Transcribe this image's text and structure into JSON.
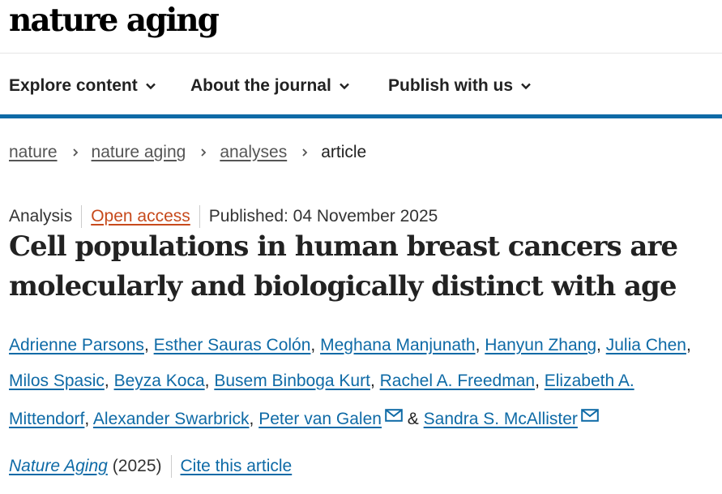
{
  "header": {
    "logo_text": "nature aging"
  },
  "nav": {
    "items": [
      {
        "label": "Explore content"
      },
      {
        "label": "About the journal"
      },
      {
        "label": "Publish with us"
      }
    ]
  },
  "breadcrumb": {
    "items": [
      "nature",
      "nature aging",
      "analyses"
    ],
    "current": "article"
  },
  "article": {
    "type": "Analysis",
    "access": "Open access",
    "published": "Published: 04 November 2025",
    "title": "Cell populations in human breast cancers are molecularly and biologically distinct with age",
    "authors": [
      "Adrienne Parsons",
      "Esther Sauras Colón",
      "Meghana Manjunath",
      "Hanyun Zhang",
      "Julia Chen",
      "Milos Spasic",
      "Beyza Koca",
      "Busem Binboga Kurt",
      "Rachel A. Freedman",
      "Elizabeth A. Mittendorf",
      "Alexander Swarbrick",
      "Peter van Galen",
      "Sandra S. McAllister"
    ],
    "author_separator": ",",
    "and_text": "&",
    "journal": "Nature Aging",
    "year": "(2025)",
    "cite_label": "Cite this article"
  },
  "colors": {
    "link": "#0e6aa6",
    "open_access": "#c74a1c",
    "nav_border": "#0e6aa6"
  },
  "icons": {
    "nav_chevron": "chevron-down-icon",
    "crumb_sep": "chevron-right-icon",
    "mail": "mail-icon"
  }
}
